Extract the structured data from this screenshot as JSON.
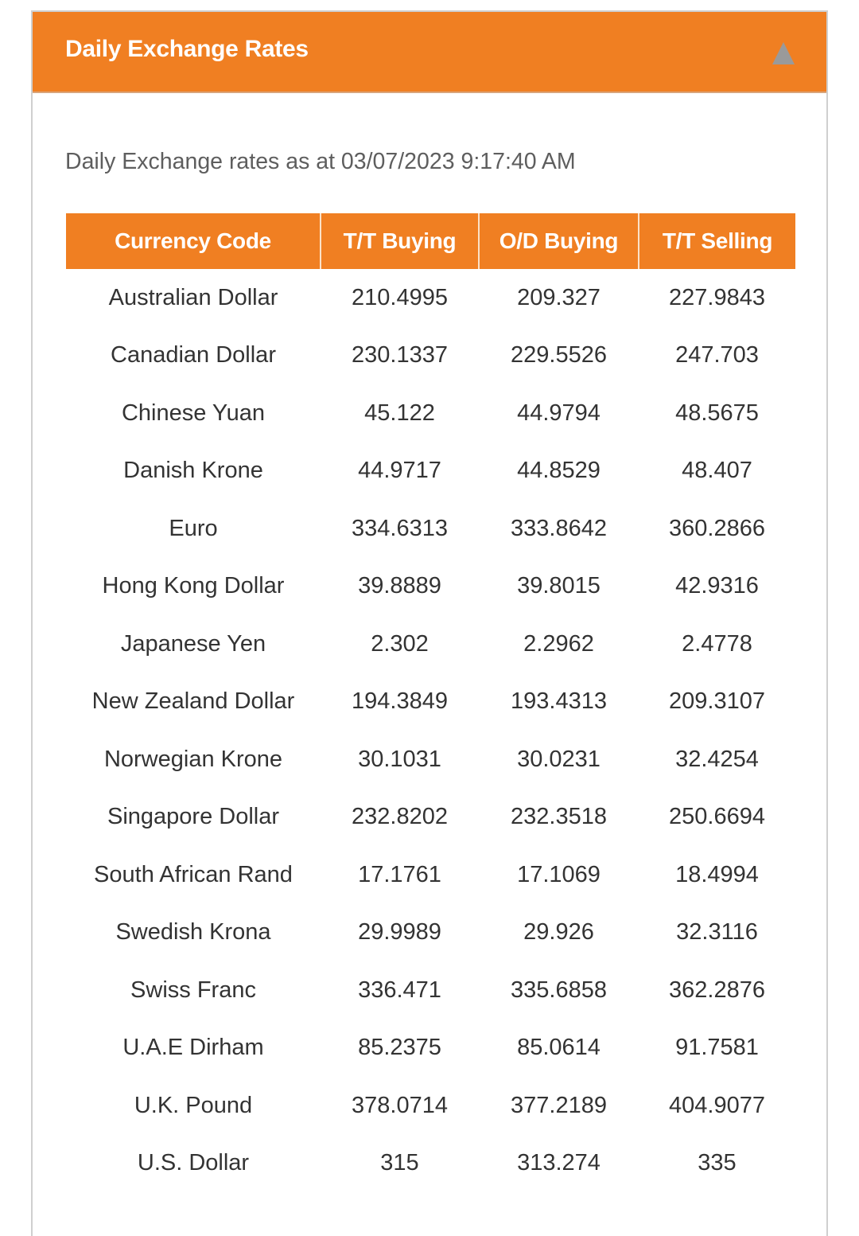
{
  "panel": {
    "title": "Daily Exchange Rates",
    "collapse_icon": "triangle-up-icon",
    "accent_color": "#f07f22",
    "subtitle": "Daily Exchange rates as at 03/07/2023 9:17:40 AM"
  },
  "table": {
    "headers": [
      "Currency Code",
      "T/T Buying",
      "O/D Buying",
      "T/T Selling"
    ],
    "rows": [
      [
        "Australian Dollar",
        "210.4995",
        "209.327",
        "227.9843"
      ],
      [
        "Canadian Dollar",
        "230.1337",
        "229.5526",
        "247.703"
      ],
      [
        "Chinese Yuan",
        "45.122",
        "44.9794",
        "48.5675"
      ],
      [
        "Danish Krone",
        "44.9717",
        "44.8529",
        "48.407"
      ],
      [
        "Euro",
        "334.6313",
        "333.8642",
        "360.2866"
      ],
      [
        "Hong Kong Dollar",
        "39.8889",
        "39.8015",
        "42.9316"
      ],
      [
        "Japanese Yen",
        "2.302",
        "2.2962",
        "2.4778"
      ],
      [
        "New Zealand Dollar",
        "194.3849",
        "193.4313",
        "209.3107"
      ],
      [
        "Norwegian Krone",
        "30.1031",
        "30.0231",
        "32.4254"
      ],
      [
        "Singapore Dollar",
        "232.8202",
        "232.3518",
        "250.6694"
      ],
      [
        "South African Rand",
        "17.1761",
        "17.1069",
        "18.4994"
      ],
      [
        "Swedish Krona",
        "29.9989",
        "29.926",
        "32.3116"
      ],
      [
        "Swiss Franc",
        "336.471",
        "335.6858",
        "362.2876"
      ],
      [
        "U.A.E Dirham",
        "85.2375",
        "85.0614",
        "91.7581"
      ],
      [
        "U.K. Pound",
        "378.0714",
        "377.2189",
        "404.9077"
      ],
      [
        "U.S. Dollar",
        "315",
        "313.274",
        "335"
      ]
    ]
  }
}
